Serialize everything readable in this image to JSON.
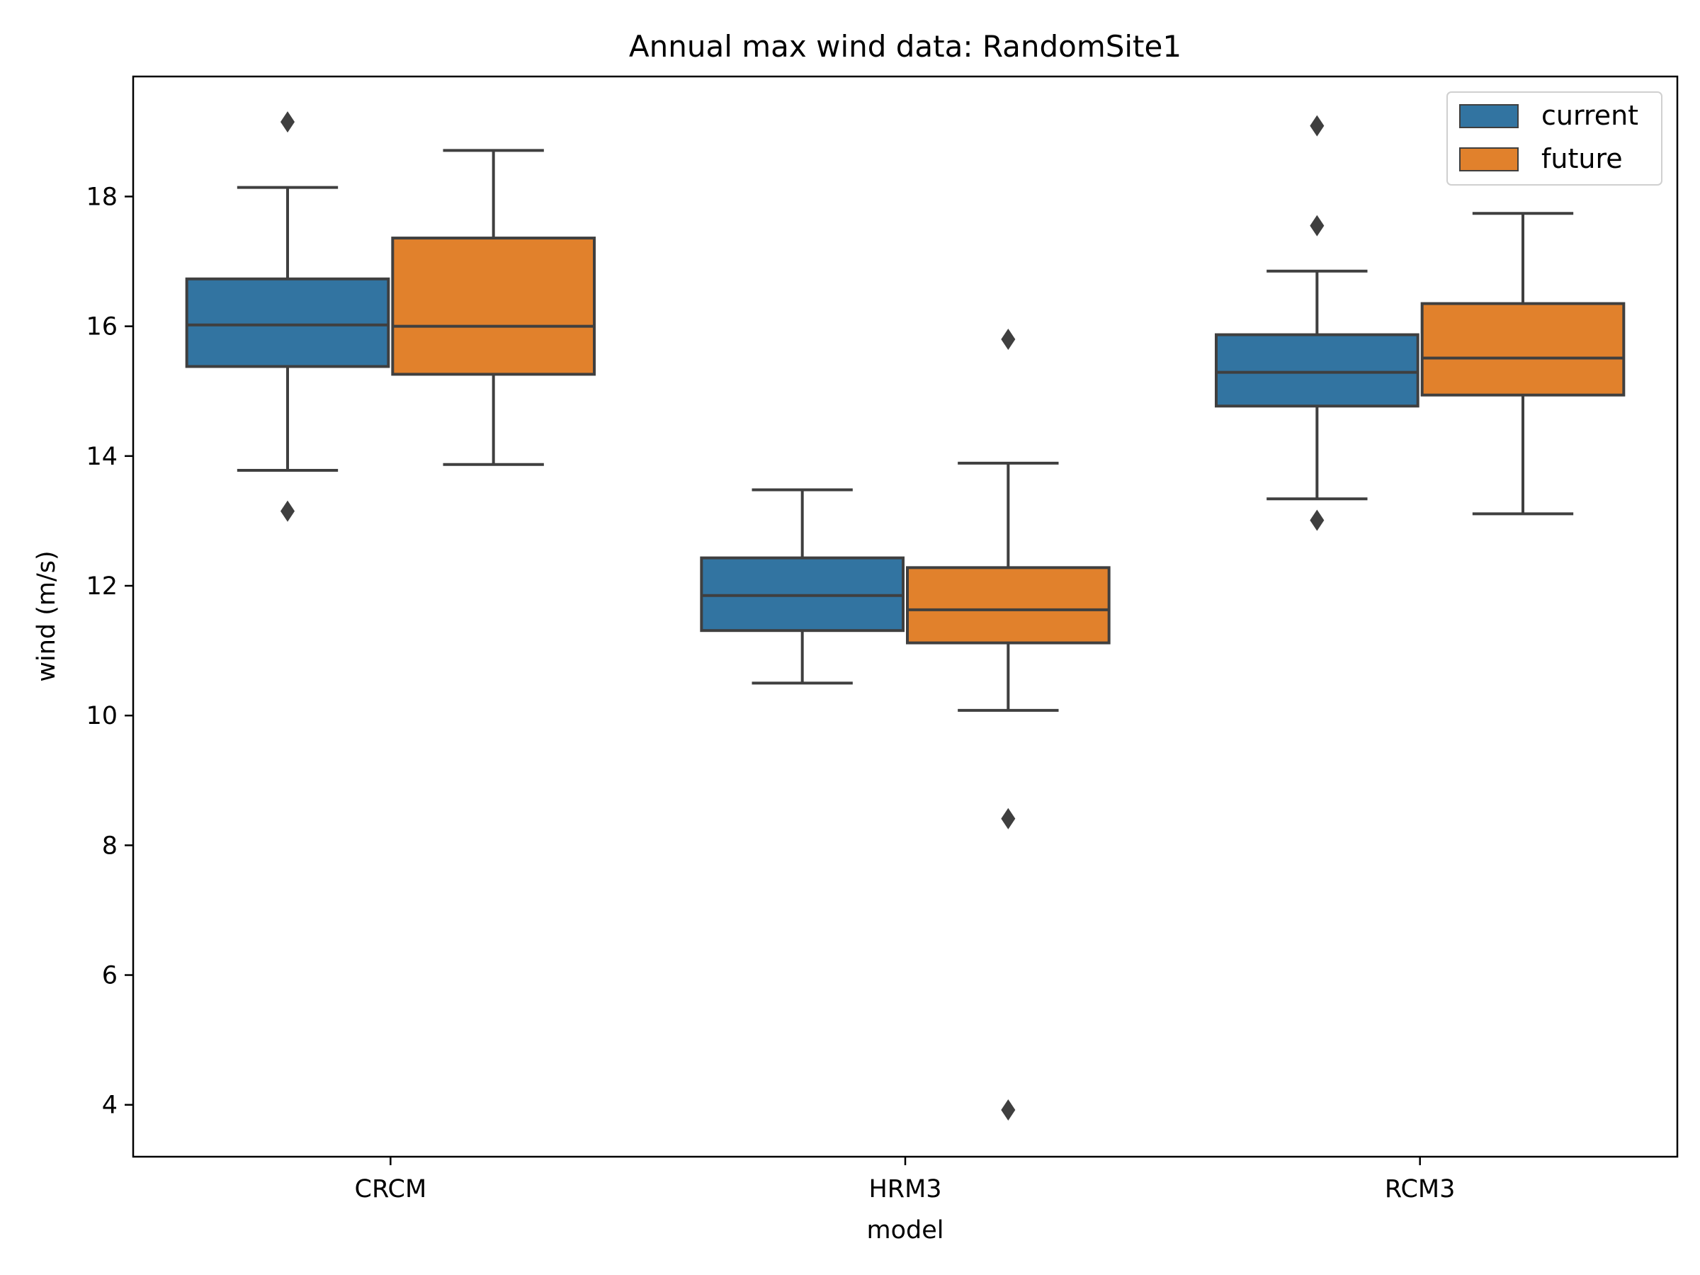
{
  "chart_data": {
    "type": "box",
    "title": "Annual max wind data: RandomSite1",
    "xlabel": "model",
    "ylabel": "wind (m/s)",
    "categories": [
      "CRCM",
      "HRM3",
      "RCM3"
    ],
    "ylim": [
      3.2,
      19.85
    ],
    "yticks": [
      4,
      6,
      8,
      10,
      12,
      14,
      16,
      18
    ],
    "grid": false,
    "legend_position": "top-right",
    "series": [
      {
        "name": "current",
        "color": "#3274a1",
        "boxes": [
          {
            "category": "CRCM",
            "whisker_low": 13.78,
            "q1": 15.38,
            "median": 16.02,
            "q3": 16.73,
            "whisker_high": 18.14,
            "outliers": [
              13.15,
              19.15
            ]
          },
          {
            "category": "HRM3",
            "whisker_low": 10.5,
            "q1": 11.31,
            "median": 11.85,
            "q3": 12.43,
            "whisker_high": 13.48,
            "outliers": []
          },
          {
            "category": "RCM3",
            "whisker_low": 13.34,
            "q1": 14.77,
            "median": 15.29,
            "q3": 15.87,
            "whisker_high": 16.85,
            "outliers": [
              13.01,
              17.55,
              19.09
            ]
          }
        ]
      },
      {
        "name": "future",
        "color": "#e1812c",
        "boxes": [
          {
            "category": "CRCM",
            "whisker_low": 13.87,
            "q1": 15.26,
            "median": 16.0,
            "q3": 17.36,
            "whisker_high": 18.71,
            "outliers": []
          },
          {
            "category": "HRM3",
            "whisker_low": 10.08,
            "q1": 11.12,
            "median": 11.63,
            "q3": 12.28,
            "whisker_high": 13.89,
            "outliers": [
              3.92,
              8.41,
              15.8
            ]
          },
          {
            "category": "RCM3",
            "whisker_low": 13.11,
            "q1": 14.94,
            "median": 15.51,
            "q3": 16.35,
            "whisker_high": 17.74,
            "outliers": []
          }
        ]
      }
    ]
  }
}
